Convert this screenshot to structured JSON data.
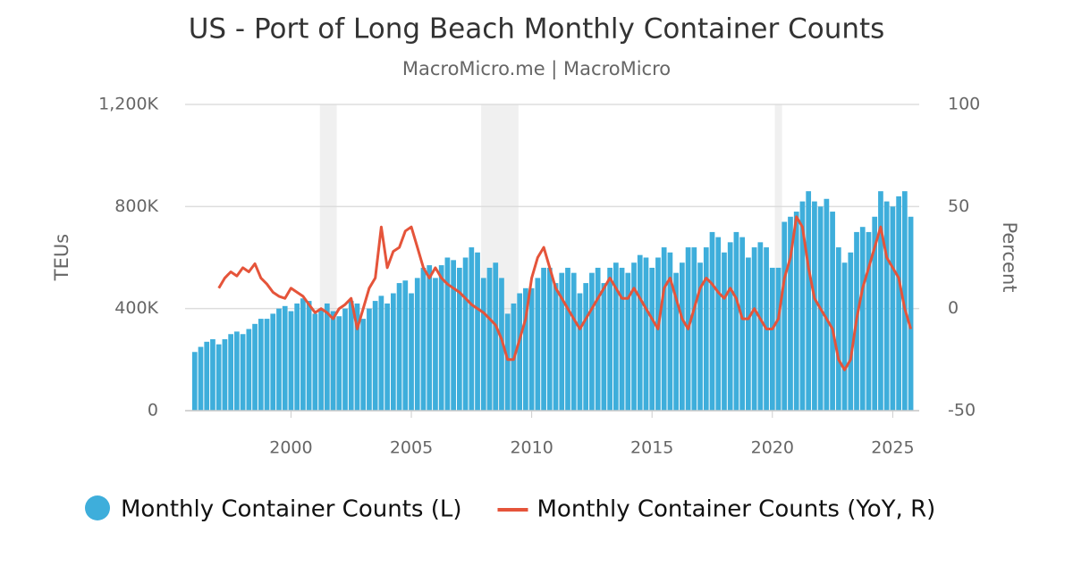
{
  "chart_data": {
    "type": "bar_line",
    "title": "US - Port of Long Beach Monthly Container Counts",
    "subtitle": "MacroMicro.me | MacroMicro",
    "y_label": "TEUs",
    "y2_label": "Percent",
    "xlim": [
      1995.6,
      2026.1
    ],
    "xticks": [
      2000,
      2005,
      2010,
      2015,
      2020,
      2025
    ],
    "ylim": [
      0,
      1200000
    ],
    "yticks": [
      0,
      {
        "value": 400000,
        "label": "400K"
      },
      {
        "value": 800000,
        "label": "800K"
      },
      {
        "value": 1200000,
        "label": "1,200K"
      }
    ],
    "y2lim": [
      -50,
      100
    ],
    "y2ticks": [
      -50,
      0,
      50,
      100
    ],
    "grid": true,
    "recessions": [
      [
        2001.2,
        2001.9
      ],
      [
        2007.9,
        2009.45
      ],
      [
        2020.1,
        2020.4
      ]
    ],
    "recession_color": "#f0f0f0",
    "x": [
      1996,
      1996.25,
      1996.5,
      1996.75,
      1997,
      1997.25,
      1997.5,
      1997.75,
      1998,
      1998.25,
      1998.5,
      1998.75,
      1999,
      1999.25,
      1999.5,
      1999.75,
      2000,
      2000.25,
      2000.5,
      2000.75,
      2001,
      2001.25,
      2001.5,
      2001.75,
      2002,
      2002.25,
      2002.5,
      2002.75,
      2003,
      2003.25,
      2003.5,
      2003.75,
      2004,
      2004.25,
      2004.5,
      2004.75,
      2005,
      2005.25,
      2005.5,
      2005.75,
      2006,
      2006.25,
      2006.5,
      2006.75,
      2007,
      2007.25,
      2007.5,
      2007.75,
      2008,
      2008.25,
      2008.5,
      2008.75,
      2009,
      2009.25,
      2009.5,
      2009.75,
      2010,
      2010.25,
      2010.5,
      2010.75,
      2011,
      2011.25,
      2011.5,
      2011.75,
      2012,
      2012.25,
      2012.5,
      2012.75,
      2013,
      2013.25,
      2013.5,
      2013.75,
      2014,
      2014.25,
      2014.5,
      2014.75,
      2015,
      2015.25,
      2015.5,
      2015.75,
      2016,
      2016.25,
      2016.5,
      2016.75,
      2017,
      2017.25,
      2017.5,
      2017.75,
      2018,
      2018.25,
      2018.5,
      2018.75,
      2019,
      2019.25,
      2019.5,
      2019.75,
      2020,
      2020.25,
      2020.5,
      2020.75,
      2021,
      2021.25,
      2021.5,
      2021.75,
      2022,
      2022.25,
      2022.5,
      2022.75,
      2023,
      2023.25,
      2023.5,
      2023.75,
      2024,
      2024.25,
      2024.5,
      2024.75,
      2025,
      2025.25,
      2025.5,
      2025.75
    ],
    "series": [
      {
        "name": "Monthly Container Counts (L)",
        "color": "#3eaedb",
        "axis": "y",
        "values": [
          230000,
          250000,
          270000,
          280000,
          260000,
          280000,
          300000,
          310000,
          300000,
          320000,
          340000,
          360000,
          360000,
          380000,
          400000,
          410000,
          390000,
          420000,
          440000,
          430000,
          380000,
          400000,
          420000,
          390000,
          370000,
          400000,
          430000,
          420000,
          360000,
          400000,
          430000,
          450000,
          420000,
          460000,
          500000,
          510000,
          460000,
          520000,
          560000,
          570000,
          520000,
          570000,
          600000,
          590000,
          560000,
          600000,
          640000,
          620000,
          520000,
          560000,
          580000,
          520000,
          380000,
          420000,
          460000,
          480000,
          480000,
          520000,
          560000,
          560000,
          500000,
          540000,
          560000,
          540000,
          460000,
          500000,
          540000,
          560000,
          500000,
          560000,
          580000,
          560000,
          540000,
          580000,
          610000,
          600000,
          560000,
          600000,
          640000,
          620000,
          540000,
          580000,
          640000,
          640000,
          580000,
          640000,
          700000,
          680000,
          620000,
          660000,
          700000,
          680000,
          600000,
          640000,
          660000,
          640000,
          560000,
          560000,
          740000,
          760000,
          780000,
          820000,
          860000,
          820000,
          800000,
          830000,
          780000,
          640000,
          580000,
          620000,
          700000,
          720000,
          700000,
          760000,
          860000,
          820000,
          800000,
          840000,
          860000,
          760000
        ]
      },
      {
        "name": "Monthly Container Counts (YoY, R)",
        "color": "#e5543a",
        "axis": "y2",
        "values": [
          null,
          null,
          null,
          null,
          10,
          15,
          18,
          16,
          20,
          18,
          22,
          15,
          12,
          8,
          6,
          5,
          10,
          8,
          6,
          2,
          -2,
          0,
          -2,
          -5,
          0,
          2,
          5,
          -10,
          0,
          10,
          15,
          40,
          20,
          28,
          30,
          38,
          40,
          30,
          20,
          15,
          20,
          15,
          12,
          10,
          8,
          5,
          2,
          0,
          -2,
          -5,
          -8,
          -15,
          -25,
          -25,
          -15,
          -5,
          15,
          25,
          30,
          20,
          10,
          5,
          0,
          -5,
          -10,
          -5,
          0,
          5,
          10,
          15,
          10,
          5,
          5,
          10,
          5,
          0,
          -5,
          -10,
          10,
          15,
          5,
          -5,
          -10,
          0,
          10,
          15,
          12,
          8,
          5,
          10,
          5,
          -5,
          -5,
          0,
          -5,
          -10,
          -10,
          -5,
          15,
          25,
          45,
          40,
          20,
          5,
          0,
          -5,
          -10,
          -25,
          -30,
          -25,
          -5,
          10,
          20,
          30,
          40,
          25,
          20,
          15,
          0,
          -10
        ]
      }
    ]
  }
}
